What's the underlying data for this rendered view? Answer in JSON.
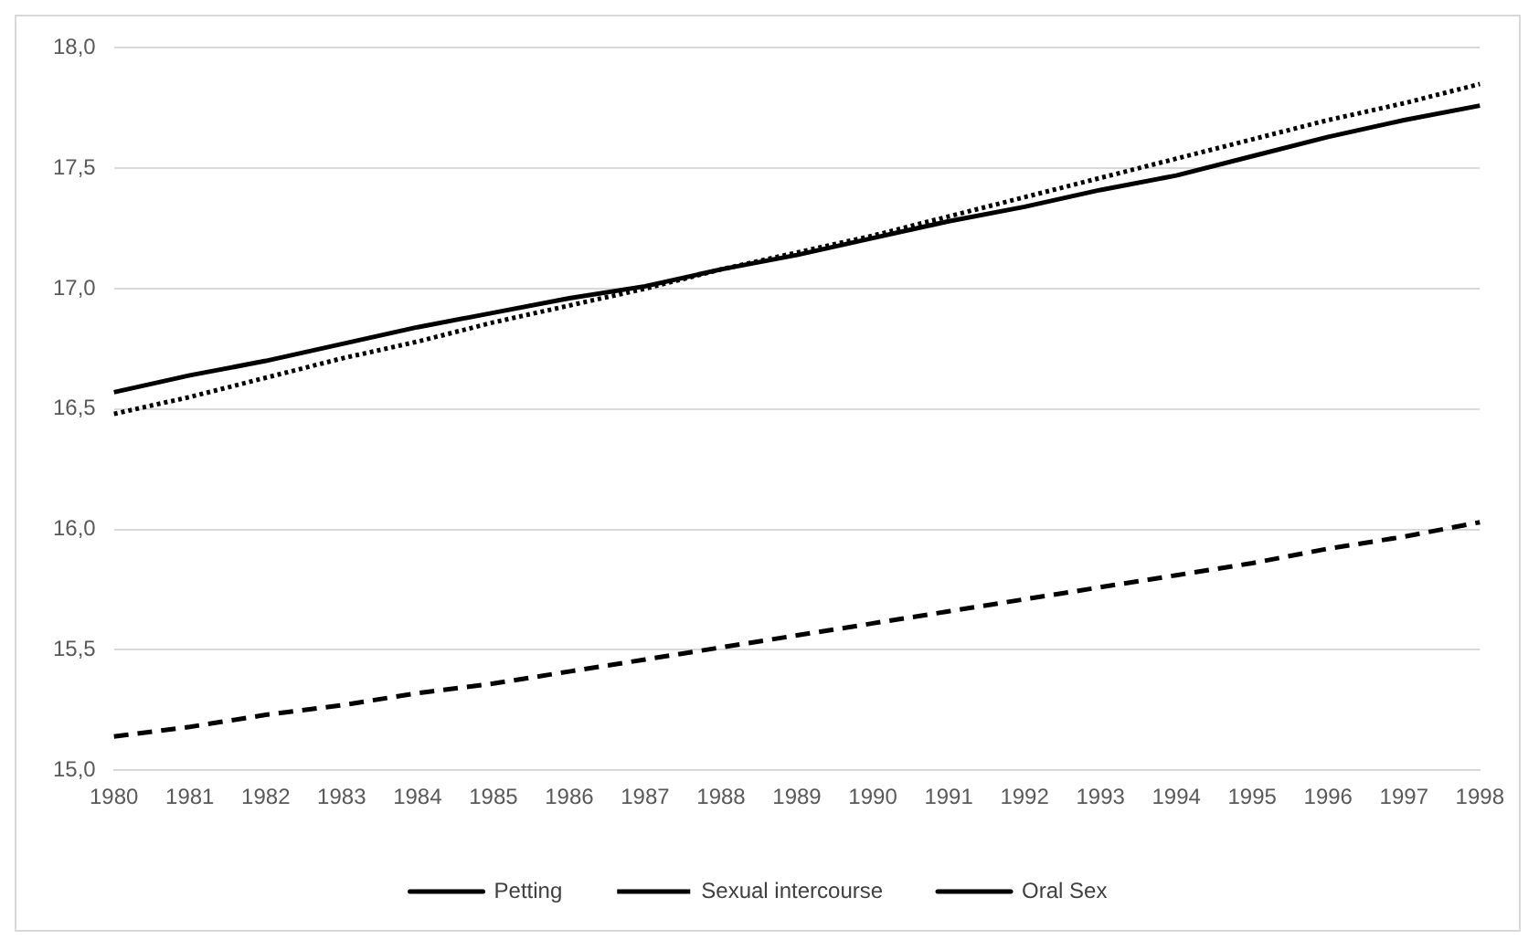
{
  "chart_data": {
    "type": "line",
    "categories": [
      "1980",
      "1981",
      "1982",
      "1983",
      "1984",
      "1985",
      "1986",
      "1987",
      "1988",
      "1989",
      "1990",
      "1991",
      "1992",
      "1993",
      "1994",
      "1995",
      "1996",
      "1997",
      "1998"
    ],
    "series": [
      {
        "name": "Petting",
        "color": "#000000",
        "line_style": "dashed",
        "values": [
          15.14,
          15.18,
          15.23,
          15.27,
          15.32,
          15.36,
          15.41,
          15.46,
          15.51,
          15.56,
          15.61,
          15.66,
          15.71,
          15.76,
          15.81,
          15.86,
          15.92,
          15.97,
          16.03
        ]
      },
      {
        "name": "Sexual intercourse",
        "color": "#000000",
        "line_style": "dotted",
        "values": [
          16.48,
          16.55,
          16.63,
          16.71,
          16.78,
          16.86,
          16.93,
          17.0,
          17.08,
          17.15,
          17.22,
          17.3,
          17.38,
          17.46,
          17.54,
          17.62,
          17.7,
          17.77,
          17.85
        ]
      },
      {
        "name": "Oral Sex",
        "color": "#000000",
        "line_style": "solid",
        "values": [
          16.57,
          16.64,
          16.7,
          16.77,
          16.84,
          16.9,
          16.96,
          17.01,
          17.08,
          17.14,
          17.21,
          17.28,
          17.34,
          17.41,
          17.47,
          17.55,
          17.63,
          17.7,
          17.76
        ]
      }
    ],
    "ylim": [
      15,
      18
    ],
    "yticks": [
      {
        "value": 15,
        "label": "15,0"
      },
      {
        "value": 15.5,
        "label": "15,5"
      },
      {
        "value": 16,
        "label": "16,0"
      },
      {
        "value": 16.5,
        "label": "16,5"
      },
      {
        "value": 17,
        "label": "17,0"
      },
      {
        "value": 17.5,
        "label": "17,5"
      },
      {
        "value": 18,
        "label": "18,0"
      }
    ],
    "grid": "y",
    "legend": "bottom",
    "marker": "none"
  }
}
